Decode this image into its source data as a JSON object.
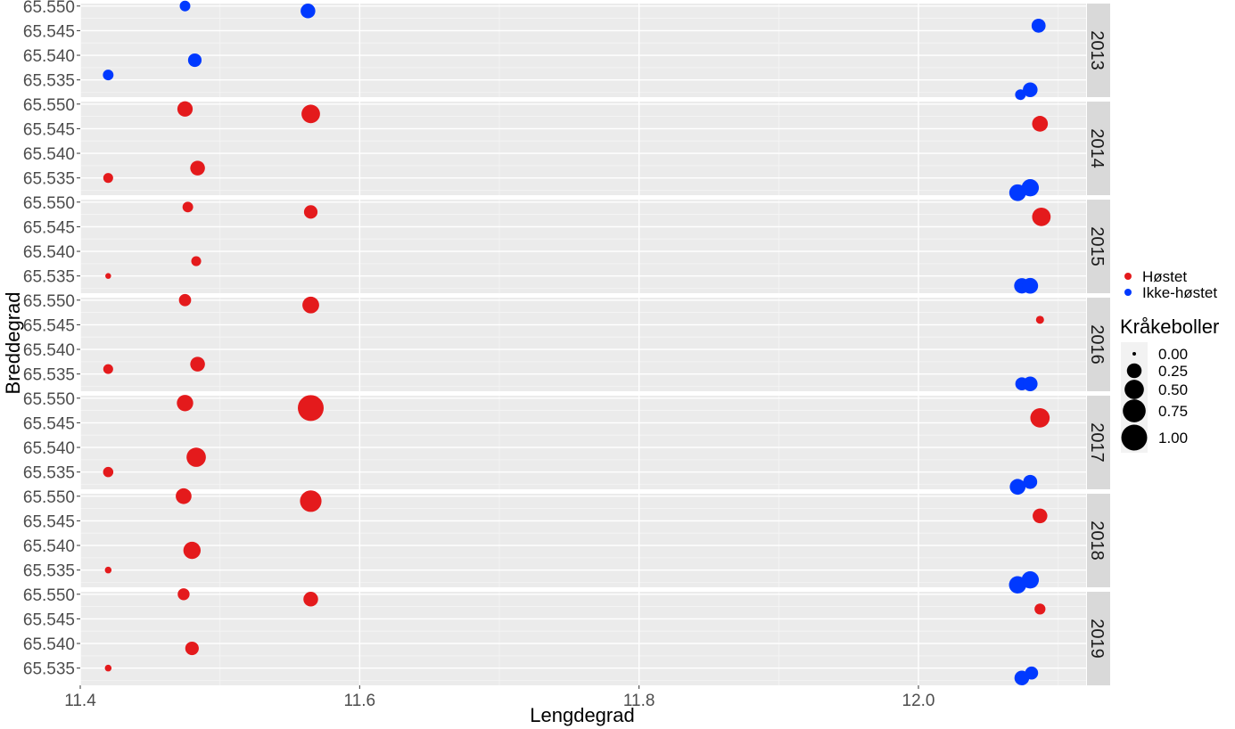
{
  "chart_data": {
    "type": "scatter",
    "xlabel": "Lengdegrad",
    "ylabel": "Breddegrad",
    "xlim": [
      11.4,
      12.12
    ],
    "ylim": [
      65.5315,
      65.5505
    ],
    "x_ticks": [
      "11.4",
      "11.6",
      "11.8",
      "12.0"
    ],
    "y_ticks": [
      "65.535",
      "65.540",
      "65.545",
      "65.550"
    ],
    "facets": [
      "2013",
      "2014",
      "2015",
      "2016",
      "2017",
      "2018",
      "2019"
    ],
    "grid": true,
    "legend_position": "right",
    "color_legend": {
      "items": [
        {
          "label": "Høstet",
          "color": "#E41A1C"
        },
        {
          "label": "Ikke-høstet",
          "color": "#0039FF"
        }
      ]
    },
    "size_legend": {
      "title": "Kråkeboller",
      "items": [
        "0.00",
        "0.25",
        "0.50",
        "0.75",
        "1.00"
      ],
      "values": [
        0.0,
        0.25,
        0.5,
        0.75,
        1.0
      ]
    },
    "series": [
      {
        "name": "Høstet",
        "points": [
          {
            "facet": "2014",
            "x": 11.42,
            "y": 65.535,
            "size": 0.08
          },
          {
            "facet": "2014",
            "x": 11.475,
            "y": 65.549,
            "size": 0.28
          },
          {
            "facet": "2014",
            "x": 11.484,
            "y": 65.537,
            "size": 0.25
          },
          {
            "facet": "2014",
            "x": 11.565,
            "y": 65.548,
            "size": 0.45
          },
          {
            "facet": "2014",
            "x": 12.087,
            "y": 65.546,
            "size": 0.3
          },
          {
            "facet": "2015",
            "x": 11.42,
            "y": 65.535,
            "size": 0.01
          },
          {
            "facet": "2015",
            "x": 11.477,
            "y": 65.549,
            "size": 0.1
          },
          {
            "facet": "2015",
            "x": 11.483,
            "y": 65.538,
            "size": 0.08
          },
          {
            "facet": "2015",
            "x": 11.565,
            "y": 65.548,
            "size": 0.2
          },
          {
            "facet": "2015",
            "x": 12.088,
            "y": 65.547,
            "size": 0.45
          },
          {
            "facet": "2016",
            "x": 11.42,
            "y": 65.536,
            "size": 0.08
          },
          {
            "facet": "2016",
            "x": 11.475,
            "y": 65.55,
            "size": 0.15
          },
          {
            "facet": "2016",
            "x": 11.484,
            "y": 65.537,
            "size": 0.25
          },
          {
            "facet": "2016",
            "x": 11.565,
            "y": 65.549,
            "size": 0.35
          },
          {
            "facet": "2016",
            "x": 12.087,
            "y": 65.546,
            "size": 0.04
          },
          {
            "facet": "2017",
            "x": 11.42,
            "y": 65.535,
            "size": 0.09
          },
          {
            "facet": "2017",
            "x": 11.475,
            "y": 65.549,
            "size": 0.33
          },
          {
            "facet": "2017",
            "x": 11.483,
            "y": 65.538,
            "size": 0.5
          },
          {
            "facet": "2017",
            "x": 11.565,
            "y": 65.548,
            "size": 1.0
          },
          {
            "facet": "2017",
            "x": 12.087,
            "y": 65.546,
            "size": 0.5
          },
          {
            "facet": "2018",
            "x": 11.42,
            "y": 65.535,
            "size": 0.02
          },
          {
            "facet": "2018",
            "x": 11.474,
            "y": 65.55,
            "size": 0.3
          },
          {
            "facet": "2018",
            "x": 11.48,
            "y": 65.539,
            "size": 0.38
          },
          {
            "facet": "2018",
            "x": 11.565,
            "y": 65.549,
            "size": 0.65
          },
          {
            "facet": "2018",
            "x": 12.087,
            "y": 65.546,
            "size": 0.25
          },
          {
            "facet": "2019",
            "x": 11.42,
            "y": 65.535,
            "size": 0.02
          },
          {
            "facet": "2019",
            "x": 11.474,
            "y": 65.55,
            "size": 0.14
          },
          {
            "facet": "2019",
            "x": 11.48,
            "y": 65.539,
            "size": 0.2
          },
          {
            "facet": "2019",
            "x": 11.565,
            "y": 65.549,
            "size": 0.25
          },
          {
            "facet": "2019",
            "x": 12.087,
            "y": 65.547,
            "size": 0.11
          }
        ]
      },
      {
        "name": "Ikke-høstet",
        "points": [
          {
            "facet": "2013",
            "x": 11.42,
            "y": 65.536,
            "size": 0.1
          },
          {
            "facet": "2013",
            "x": 11.475,
            "y": 65.55,
            "size": 0.1
          },
          {
            "facet": "2013",
            "x": 11.482,
            "y": 65.539,
            "size": 0.2
          },
          {
            "facet": "2013",
            "x": 11.563,
            "y": 65.549,
            "size": 0.25
          },
          {
            "facet": "2013",
            "x": 12.086,
            "y": 65.546,
            "size": 0.22
          },
          {
            "facet": "2013",
            "x": 12.073,
            "y": 65.532,
            "size": 0.1
          },
          {
            "facet": "2013",
            "x": 12.08,
            "y": 65.533,
            "size": 0.25
          },
          {
            "facet": "2014",
            "x": 12.071,
            "y": 65.532,
            "size": 0.35
          },
          {
            "facet": "2014",
            "x": 12.08,
            "y": 65.533,
            "size": 0.38
          },
          {
            "facet": "2015",
            "x": 12.074,
            "y": 65.533,
            "size": 0.28
          },
          {
            "facet": "2015",
            "x": 12.08,
            "y": 65.533,
            "size": 0.3
          },
          {
            "facet": "2016",
            "x": 12.074,
            "y": 65.533,
            "size": 0.18
          },
          {
            "facet": "2016",
            "x": 12.08,
            "y": 65.533,
            "size": 0.25
          },
          {
            "facet": "2017",
            "x": 12.071,
            "y": 65.532,
            "size": 0.3
          },
          {
            "facet": "2017",
            "x": 12.08,
            "y": 65.533,
            "size": 0.22
          },
          {
            "facet": "2018",
            "x": 12.071,
            "y": 65.532,
            "size": 0.38
          },
          {
            "facet": "2018",
            "x": 12.08,
            "y": 65.533,
            "size": 0.38
          },
          {
            "facet": "2019",
            "x": 12.074,
            "y": 65.533,
            "size": 0.25
          },
          {
            "facet": "2019",
            "x": 12.081,
            "y": 65.534,
            "size": 0.18
          }
        ]
      }
    ]
  }
}
